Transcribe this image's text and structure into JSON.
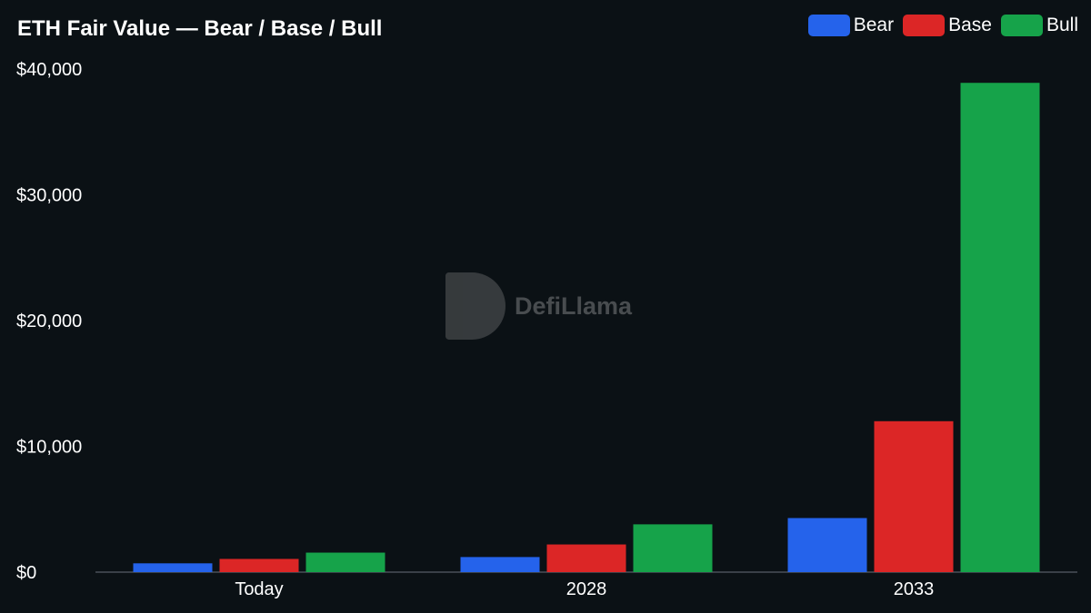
{
  "chart_data": {
    "type": "bar",
    "title": "ETH Fair Value — Bear / Base / Bull",
    "categories": [
      "Today",
      "2028",
      "2033"
    ],
    "series": [
      {
        "name": "Bear",
        "color": "#2563eb",
        "values": [
          700,
          1200,
          4300
        ]
      },
      {
        "name": "Base",
        "color": "#dc2626",
        "values": [
          1050,
          2200,
          12000
        ]
      },
      {
        "name": "Bull",
        "color": "#16a34a",
        "values": [
          1550,
          3800,
          38900
        ]
      }
    ],
    "yticks": [
      "$0",
      "$10,000",
      "$20,000",
      "$30,000",
      "$40,000"
    ],
    "ylim": [
      0,
      40000
    ],
    "grid": false,
    "legend": "top-right"
  },
  "watermark": "DefiLlama"
}
